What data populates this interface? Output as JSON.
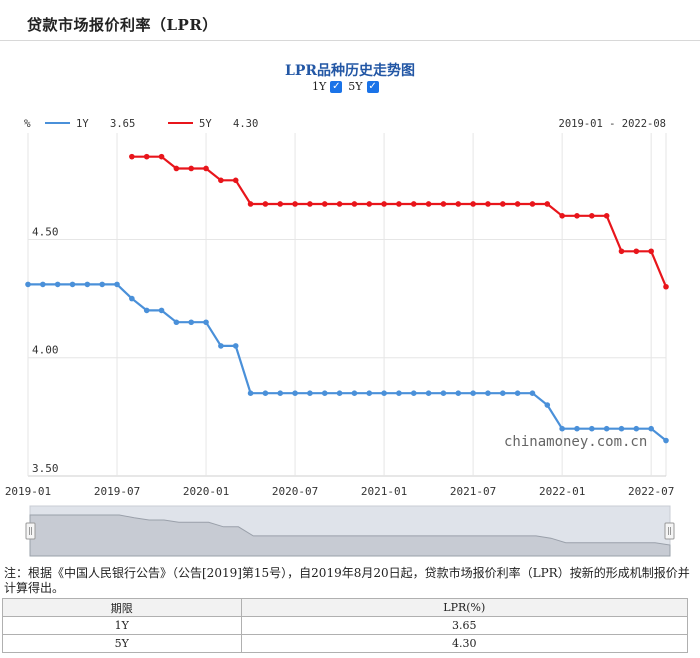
{
  "page_title": "贷款市场报价利率（LPR）",
  "chart_title": "LPR品种历史走势图",
  "toggles": [
    {
      "label": "1Y",
      "checked": true
    },
    {
      "label": "5Y",
      "checked": true
    }
  ],
  "legend": {
    "unit": "%",
    "items": [
      {
        "name": "1Y",
        "value": "3.65",
        "color": "#4a90d9"
      },
      {
        "name": "5Y",
        "value": "4.30",
        "color": "#e8151b"
      }
    ],
    "range": "2019-01 - 2022-08"
  },
  "watermark": "chinamoney.com.cn",
  "chart_data": {
    "type": "line",
    "ylim": [
      3.5,
      4.95
    ],
    "yticks": [
      3.5,
      4.0,
      4.5
    ],
    "ytick_labels": [
      "3.50",
      "4.00",
      "4.50"
    ],
    "xticks": [
      "2019-01",
      "2019-07",
      "2020-01",
      "2020-07",
      "2021-01",
      "2021-07",
      "2022-01",
      "2022-07"
    ],
    "x": [
      "2019-01",
      "2019-02",
      "2019-03",
      "2019-04",
      "2019-05",
      "2019-06",
      "2019-07",
      "2019-08",
      "2019-09",
      "2019-10",
      "2019-11",
      "2019-12",
      "2020-01",
      "2020-02",
      "2020-03",
      "2020-04",
      "2020-05",
      "2020-06",
      "2020-07",
      "2020-08",
      "2020-09",
      "2020-10",
      "2020-11",
      "2020-12",
      "2021-01",
      "2021-02",
      "2021-03",
      "2021-04",
      "2021-05",
      "2021-06",
      "2021-07",
      "2021-08",
      "2021-09",
      "2021-10",
      "2021-11",
      "2021-12",
      "2022-01",
      "2022-02",
      "2022-03",
      "2022-04",
      "2022-05",
      "2022-06",
      "2022-07",
      "2022-08"
    ],
    "series": [
      {
        "name": "1Y",
        "color": "#4a90d9",
        "values": [
          4.31,
          4.31,
          4.31,
          4.31,
          4.31,
          4.31,
          4.31,
          4.25,
          4.2,
          4.2,
          4.15,
          4.15,
          4.15,
          4.05,
          4.05,
          3.85,
          3.85,
          3.85,
          3.85,
          3.85,
          3.85,
          3.85,
          3.85,
          3.85,
          3.85,
          3.85,
          3.85,
          3.85,
          3.85,
          3.85,
          3.85,
          3.85,
          3.85,
          3.85,
          3.85,
          3.8,
          3.7,
          3.7,
          3.7,
          3.7,
          3.7,
          3.7,
          3.7,
          3.65
        ]
      },
      {
        "name": "5Y",
        "color": "#e8151b",
        "values": [
          null,
          null,
          null,
          null,
          null,
          null,
          null,
          4.85,
          4.85,
          4.85,
          4.8,
          4.8,
          4.8,
          4.75,
          4.75,
          4.65,
          4.65,
          4.65,
          4.65,
          4.65,
          4.65,
          4.65,
          4.65,
          4.65,
          4.65,
          4.65,
          4.65,
          4.65,
          4.65,
          4.65,
          4.65,
          4.65,
          4.65,
          4.65,
          4.65,
          4.65,
          4.6,
          4.6,
          4.6,
          4.6,
          4.45,
          4.45,
          4.45,
          4.3
        ]
      }
    ]
  },
  "note": "注：根据《中国人民银行公告》（公告[2019]第15号），自2019年8月20日起，贷款市场报价利率（LPR）按新的形成机制报价并计算得出。",
  "table": {
    "headers": [
      "期限",
      "LPR(%)"
    ],
    "rows": [
      [
        "1Y",
        "3.65"
      ],
      [
        "5Y",
        "4.30"
      ]
    ]
  }
}
